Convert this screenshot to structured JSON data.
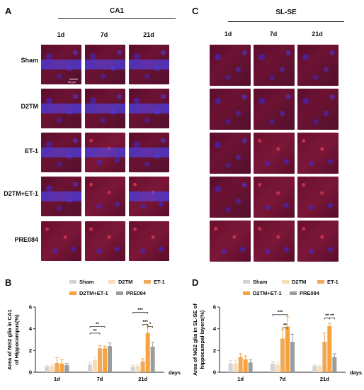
{
  "panels": {
    "A": {
      "letter": "A",
      "title": "CA1",
      "columns": [
        "1d",
        "7d",
        "21d"
      ],
      "rows": [
        "Sham",
        "D2TM",
        "ET-1",
        "D2TM+ET-1",
        "PRE084"
      ],
      "scale_label": "50 μm"
    },
    "C": {
      "letter": "C",
      "title": "SL-SE",
      "columns": [
        "1d",
        "7d",
        "21d"
      ]
    },
    "B": {
      "letter": "B"
    },
    "D": {
      "letter": "D"
    }
  },
  "legend": {
    "items": [
      {
        "name": "Sham",
        "color": "#d3d3d3"
      },
      {
        "name": "D2TM",
        "color": "#f8dcb6"
      },
      {
        "name": "ET-1",
        "color": "#f0a95c"
      },
      {
        "name": "D2TM+ET-1",
        "color": "#f7a23a"
      },
      {
        "name": "PRE084",
        "color": "#9c9c9c"
      }
    ]
  },
  "chart_data": [
    {
      "panel": "B",
      "type": "bar",
      "ylabel": "Area of NG2 glia in  CA1\nof Hippocampus(%)",
      "xlabel": "days",
      "categories": [
        "1d",
        "7d",
        "21d"
      ],
      "ylim": [
        0,
        6
      ],
      "yticks": [
        0,
        2,
        4,
        6
      ],
      "yticklabels": [
        "0",
        "2",
        "4",
        "6"
      ],
      "series": [
        {
          "name": "Sham",
          "values": [
            0.5,
            0.7,
            0.5
          ],
          "errors": [
            0.1,
            0.2,
            0.15
          ]
        },
        {
          "name": "D2TM",
          "values": [
            0.6,
            1.1,
            0.6
          ],
          "errors": [
            0.15,
            0.25,
            0.15
          ]
        },
        {
          "name": "ET-1",
          "values": [
            0.85,
            2.2,
            1.0
          ],
          "errors": [
            0.5,
            0.25,
            0.25
          ]
        },
        {
          "name": "D2TM+ET-1",
          "values": [
            0.8,
            2.2,
            3.6
          ],
          "errors": [
            0.35,
            0.2,
            0.7
          ]
        },
        {
          "name": "PRE084",
          "values": [
            0.65,
            2.4,
            2.35
          ],
          "errors": [
            0.15,
            0.3,
            0.4
          ]
        }
      ],
      "significance": [
        {
          "label": "**"
        },
        {
          "label": "**"
        },
        {
          "label": "***"
        },
        {
          "label": "***"
        },
        {
          "label": "*"
        }
      ]
    },
    {
      "panel": "D",
      "type": "bar",
      "ylabel": "Area of NG2 glia in  SL-SE of\nhippocampal layers(%)",
      "xlabel": "days",
      "categories": [
        "1d",
        "7d",
        "21d"
      ],
      "ylim": [
        0,
        6
      ],
      "yticks": [
        0,
        2,
        4,
        6
      ],
      "yticklabels": [
        "0",
        "2",
        "4",
        "6"
      ],
      "series": [
        {
          "name": "Sham",
          "values": [
            0.8,
            0.8,
            0.6
          ],
          "errors": [
            0.3,
            0.2,
            0.15
          ]
        },
        {
          "name": "D2TM",
          "values": [
            0.8,
            0.7,
            0.55
          ],
          "errors": [
            0.3,
            0.2,
            0.1
          ]
        },
        {
          "name": "ET-1",
          "values": [
            1.4,
            3.1,
            2.8
          ],
          "errors": [
            0.3,
            0.8,
            0.8
          ]
        },
        {
          "name": "D2TM+ET-1",
          "values": [
            1.2,
            4.2,
            4.25
          ],
          "errors": [
            0.3,
            0.9,
            0.25
          ]
        },
        {
          "name": "PRE084",
          "values": [
            0.9,
            2.8,
            1.4
          ],
          "errors": [
            0.25,
            0.7,
            0.3
          ]
        }
      ],
      "significance": [
        {
          "label": "**"
        },
        {
          "label": "***"
        },
        {
          "label": "**"
        },
        {
          "label": "**"
        }
      ]
    }
  ]
}
